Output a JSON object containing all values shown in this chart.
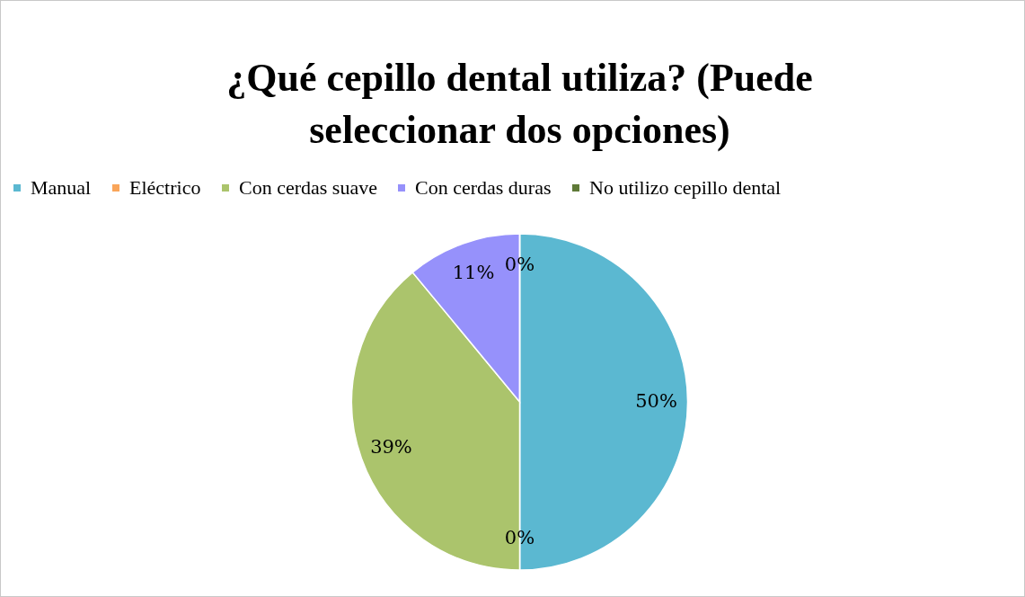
{
  "chart_data": {
    "type": "pie",
    "title": "¿Qué cepillo dental utiliza? (Puede seleccionar dos opciones)",
    "categories": [
      "Manual",
      "Eléctrico",
      "Con cerdas suave",
      "Con cerdas duras",
      "No utilizo cepillo dental"
    ],
    "values": [
      50,
      0,
      39,
      11,
      0
    ],
    "colors": [
      "#5bb8d1",
      "#f9a55a",
      "#abc46c",
      "#9691fb",
      "#5f7a38"
    ],
    "value_labels": [
      "50%",
      "0%",
      "39%",
      "11%",
      "0%"
    ],
    "legend": "top"
  }
}
